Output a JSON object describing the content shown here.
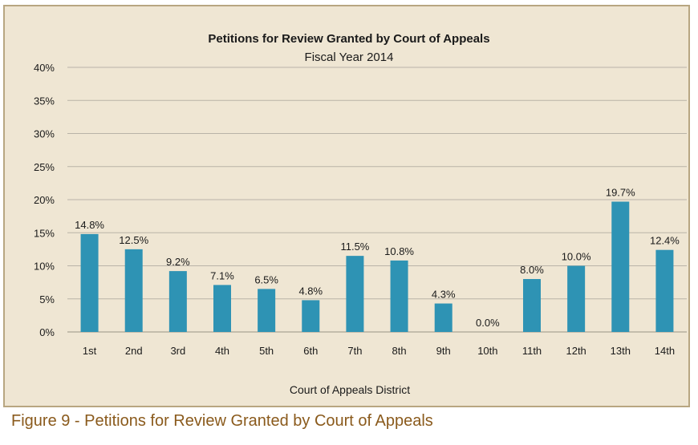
{
  "chart_data": {
    "type": "bar",
    "title": "Petitions for Review Granted by Court of Appeals",
    "subtitle": "Fiscal Year 2014",
    "xlabel": "Court of Appeals District",
    "ylabel": "",
    "categories": [
      "1st",
      "2nd",
      "3rd",
      "4th",
      "5th",
      "6th",
      "7th",
      "8th",
      "9th",
      "10th",
      "11th",
      "12th",
      "13th",
      "14th"
    ],
    "values": [
      14.8,
      12.5,
      9.2,
      7.1,
      6.5,
      4.8,
      11.5,
      10.8,
      4.3,
      0.0,
      8.0,
      10.0,
      19.7,
      12.4
    ],
    "data_labels": [
      "14.8%",
      "12.5%",
      "9.2%",
      "7.1%",
      "6.5%",
      "4.8%",
      "11.5%",
      "10.8%",
      "4.3%",
      "0.0%",
      "8.0%",
      "10.0%",
      "19.7%",
      "12.4%"
    ],
    "ylim": [
      0,
      40
    ],
    "yticks": [
      0,
      5,
      10,
      15,
      20,
      25,
      30,
      35,
      40
    ],
    "ytick_labels": [
      "0%",
      "5%",
      "10%",
      "15%",
      "20%",
      "25%",
      "30%",
      "35%",
      "40%"
    ],
    "grid": true,
    "legend": "none",
    "bar_color": "#2e93b4",
    "background_color": "#efe6d3",
    "grid_color": "#b9b3a8"
  },
  "caption": "Figure 9 - Petitions for Review Granted by Court of Appeals"
}
